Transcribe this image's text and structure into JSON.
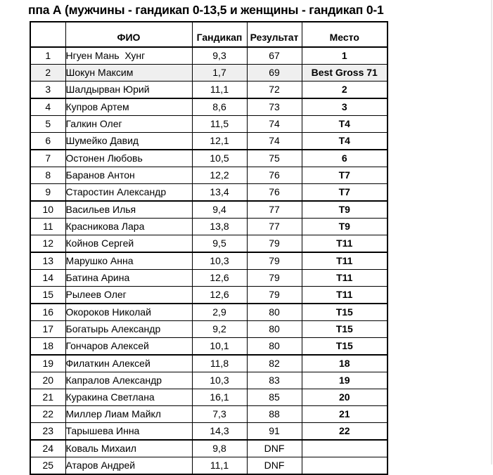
{
  "page": {
    "title": "ппа А (мужчины - гандикап 0-13,5 и женщины - гандикап 0-1",
    "colors": {
      "background": "#ffffff",
      "text": "#000000",
      "table_border": "#000000",
      "row_highlight": "#efefef",
      "page_edge_line": "#e8e8e8"
    }
  },
  "table": {
    "columns": [
      "",
      "ФИО",
      "Гандикап",
      "Результат",
      "Место"
    ],
    "rows": [
      {
        "num": "1",
        "name": "Нгуен Мань  Хунг",
        "handicap": "9,3",
        "result": "67",
        "place": "1",
        "highlight": false,
        "section_start": false
      },
      {
        "num": "2",
        "name": "Шокун Максим",
        "handicap": "1,7",
        "result": "69",
        "place": "Best Gross 71",
        "highlight": true,
        "section_start": false
      },
      {
        "num": "3",
        "name": "Шалдырван Юрий",
        "handicap": "11,1",
        "result": "72",
        "place": "2",
        "highlight": false,
        "section_start": false
      },
      {
        "num": "4",
        "name": "Купров Артем",
        "handicap": "8,6",
        "result": "73",
        "place": "3",
        "highlight": false,
        "section_start": true
      },
      {
        "num": "5",
        "name": "Галкин Олег",
        "handicap": "11,5",
        "result": "74",
        "place": "T4",
        "highlight": false,
        "section_start": false
      },
      {
        "num": "6",
        "name": "Шумейко Давид",
        "handicap": "12,1",
        "result": "74",
        "place": "T4",
        "highlight": false,
        "section_start": false
      },
      {
        "num": "7",
        "name": "Остонен Любовь",
        "handicap": "10,5",
        "result": "75",
        "place": "6",
        "highlight": false,
        "section_start": true
      },
      {
        "num": "8",
        "name": "Баранов Антон",
        "handicap": "12,2",
        "result": "76",
        "place": "T7",
        "highlight": false,
        "section_start": false
      },
      {
        "num": "9",
        "name": "Старостин Александр",
        "handicap": "13,4",
        "result": "76",
        "place": "T7",
        "highlight": false,
        "section_start": false
      },
      {
        "num": "10",
        "name": "Васильев Илья",
        "handicap": "9,4",
        "result": "77",
        "place": "T9",
        "highlight": false,
        "section_start": true
      },
      {
        "num": "11",
        "name": "Красникова Лара",
        "handicap": "13,8",
        "result": "77",
        "place": "T9",
        "highlight": false,
        "section_start": false
      },
      {
        "num": "12",
        "name": "Койнов Сергей",
        "handicap": "9,5",
        "result": "79",
        "place": "T11",
        "highlight": false,
        "section_start": false
      },
      {
        "num": "13",
        "name": "Марушко Анна",
        "handicap": "10,3",
        "result": "79",
        "place": "T11",
        "highlight": false,
        "section_start": true
      },
      {
        "num": "14",
        "name": "Батина Арина",
        "handicap": "12,6",
        "result": "79",
        "place": "T11",
        "highlight": false,
        "section_start": false
      },
      {
        "num": "15",
        "name": "Рылеев Олег",
        "handicap": "12,6",
        "result": "79",
        "place": "T11",
        "highlight": false,
        "section_start": false
      },
      {
        "num": "16",
        "name": "Окороков Николай",
        "handicap": "2,9",
        "result": "80",
        "place": "T15",
        "highlight": false,
        "section_start": true
      },
      {
        "num": "17",
        "name": "Богатырь Александр",
        "handicap": "9,2",
        "result": "80",
        "place": "T15",
        "highlight": false,
        "section_start": false
      },
      {
        "num": "18",
        "name": "Гончаров Алексей",
        "handicap": "10,1",
        "result": "80",
        "place": "T15",
        "highlight": false,
        "section_start": false
      },
      {
        "num": "19",
        "name": "Филаткин Алексей",
        "handicap": "11,8",
        "result": "82",
        "place": "18",
        "highlight": false,
        "section_start": true
      },
      {
        "num": "20",
        "name": "Капралов Александр",
        "handicap": "10,3",
        "result": "83",
        "place": "19",
        "highlight": false,
        "section_start": false
      },
      {
        "num": "21",
        "name": "Куракина Светлана",
        "handicap": "16,1",
        "result": "85",
        "place": "20",
        "highlight": false,
        "section_start": false
      },
      {
        "num": "22",
        "name": "Миллер Лиам Майкл",
        "handicap": "7,3",
        "result": "88",
        "place": "21",
        "highlight": false,
        "section_start": false
      },
      {
        "num": "23",
        "name": "Тарышева Инна",
        "handicap": "14,3",
        "result": "91",
        "place": "22",
        "highlight": false,
        "section_start": false
      },
      {
        "num": "24",
        "name": "Коваль Михаил",
        "handicap": "9,8",
        "result": "DNF",
        "place": "",
        "highlight": false,
        "section_start": true
      },
      {
        "num": "25",
        "name": "Атаров Андрей",
        "handicap": "11,1",
        "result": "DNF",
        "place": "",
        "highlight": false,
        "section_start": false
      }
    ]
  }
}
